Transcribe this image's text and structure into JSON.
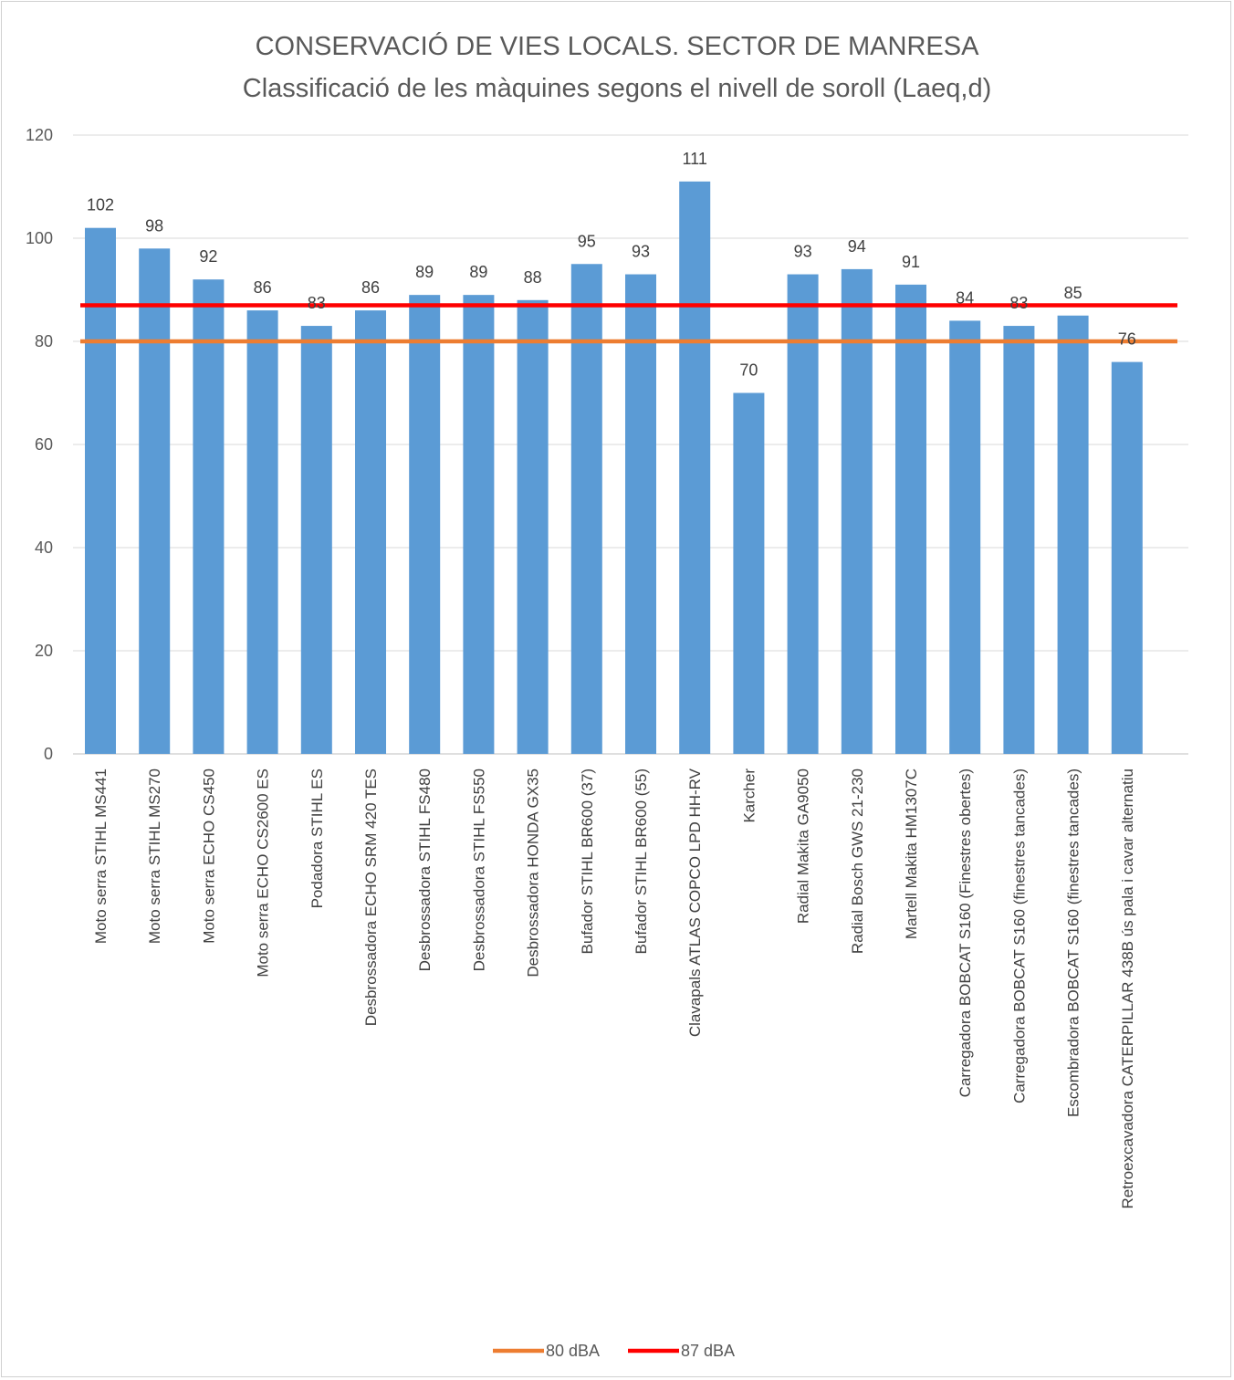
{
  "chart_data": {
    "type": "bar",
    "title": "CONSERVACIÓ DE VIES LOCALS. SECTOR DE MANRESA",
    "subtitle": "Classificació de les màquines segons el nivell de soroll (Laeq,d)",
    "xlabel": "",
    "ylabel": "",
    "ylim": [
      0,
      120
    ],
    "yticks": [
      0,
      20,
      40,
      60,
      80,
      100,
      120
    ],
    "grid": true,
    "legend_position": "bottom",
    "categories": [
      "Moto serra STIHL MS441",
      "Moto serra STIHL MS270",
      "Moto serra ECHO CS450",
      "Moto serra ECHO CS2600 ES",
      "Podadora STIHL ES",
      "Desbrossadora ECHO SRM 420 TES",
      "Desbrossadora STIHL FS480",
      "Desbrossadora STIHL FS550",
      "Desbrossadora HONDA GX35",
      "Bufador STIHL BR600 (37)",
      "Bufador STIHL BR600 (55)",
      "Clavapals ATLAS COPCO LPD  HH-RV",
      "Karcher",
      "Radial Makita GA9050",
      "Radial Bosch GWS 21-230",
      "Martell Makita HM1307C",
      "Carregadora BOBCAT S160 (Finestres obertes)",
      "Carregadora BOBCAT S160 (finestres tancades)",
      "Escombradora BOBCAT S160 (finestres tancades)",
      "Retroexcavadora CATERPILLAR 438B ús pala i cavar alternatiu"
    ],
    "values": [
      102,
      98,
      92,
      86,
      83,
      86,
      89,
      89,
      88,
      95,
      93,
      111,
      70,
      93,
      94,
      91,
      84,
      83,
      85,
      76
    ],
    "bar_color": "#5b9bd5",
    "reference_lines": [
      {
        "name": "80 dBA",
        "value": 80,
        "color": "#ed7d31"
      },
      {
        "name": "87 dBA",
        "value": 87,
        "color": "#ff0000"
      }
    ]
  }
}
